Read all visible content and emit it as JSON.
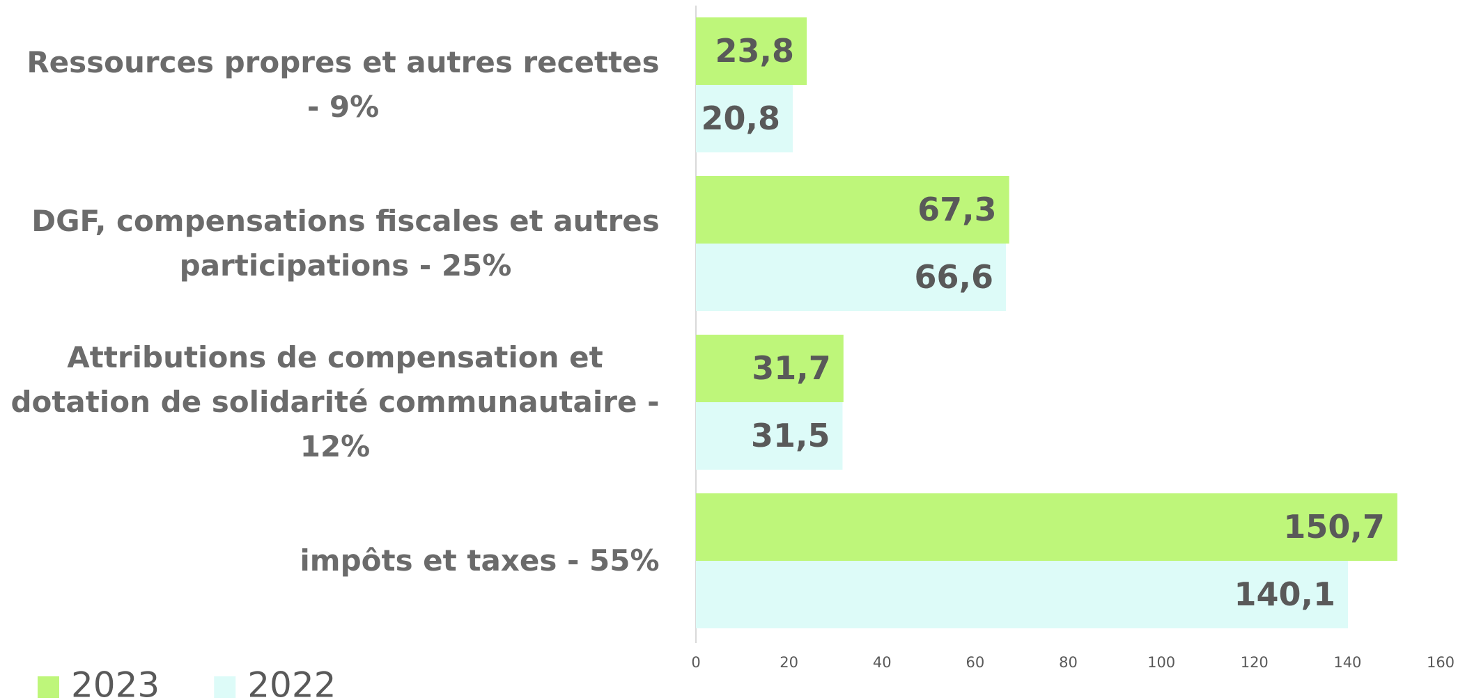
{
  "chart_data": {
    "type": "barh",
    "categories": [
      "Ressources propres et autres recettes - 9%",
      "DGF, compensations fiscales et autres participations - 25%",
      "Attributions de compensation et dotation de solidarité communautaire - 12%",
      "impôts et taxes - 55%"
    ],
    "series": [
      {
        "name": "2023",
        "color": "#bef67a",
        "values": [
          23.8,
          67.3,
          31.7,
          150.7
        ],
        "value_labels": [
          "23,8",
          "67,3",
          "31,7",
          "150,7"
        ]
      },
      {
        "name": "2022",
        "color": "#ddfbf8",
        "values": [
          20.8,
          66.6,
          31.5,
          140.1
        ],
        "value_labels": [
          "20,8",
          "66,6",
          "31,5",
          "140,1"
        ]
      }
    ],
    "xlim": [
      0,
      160
    ],
    "xticks": [
      0,
      20,
      40,
      60,
      80,
      100,
      120,
      140,
      160
    ],
    "legend": "bottom-left"
  }
}
